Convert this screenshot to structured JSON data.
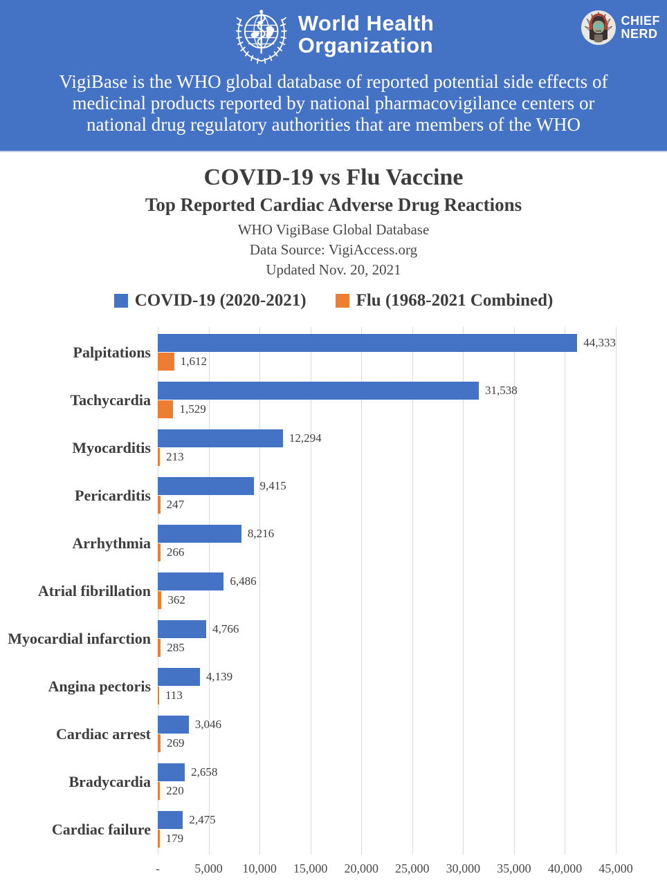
{
  "header": {
    "who_name_line1": "World Health",
    "who_name_line2": "Organization",
    "badge_line1": "CHIEF",
    "badge_line2": "NERD",
    "banner_lines": [
      "VigiBase is the WHO global database of reported potential side effects of",
      "medicinal products reported by national pharmacovigilance centers or",
      "national drug regulatory authorities that are members of the WHO"
    ],
    "banner_color": "#4472C4"
  },
  "legend": [
    {
      "label": "COVID-19 (2020-2021)",
      "color": "#4472C4"
    },
    {
      "label": "Flu (1968-2021 Combined)",
      "color": "#ED7D31"
    }
  ],
  "chart_data": {
    "type": "bar",
    "orientation": "horizontal",
    "title": "COVID-19 vs Flu Vaccine",
    "subtitle": "Top Reported Cardiac Adverse Drug Reactions",
    "source_lines": [
      "WHO VigiBase Global Database",
      "Data Source: VigiAccess.org",
      "Updated Nov. 20, 2021"
    ],
    "categories": [
      "Palpitations",
      "Tachycardia",
      "Myocarditis",
      "Pericarditis",
      "Arrhythmia",
      "Atrial fibrillation",
      "Myocardial infarction",
      "Angina pectoris",
      "Cardiac arrest",
      "Bradycardia",
      "Cardiac failure"
    ],
    "series": [
      {
        "name": "COVID-19 (2020-2021)",
        "color": "#4472C4",
        "values": [
          44333,
          31538,
          12294,
          9415,
          8216,
          6486,
          4766,
          4139,
          3046,
          2658,
          2475
        ]
      },
      {
        "name": "Flu (1968-2021 Combined)",
        "color": "#ED7D31",
        "values": [
          1612,
          1529,
          213,
          247,
          266,
          362,
          285,
          113,
          269,
          220,
          179
        ]
      }
    ],
    "xlim": [
      0,
      45000
    ],
    "xticks": [
      "-",
      "5,000",
      "10,000",
      "15,000",
      "20,000",
      "25,000",
      "30,000",
      "35,000",
      "40,000",
      "45,000"
    ],
    "gridline_interval": 5000,
    "grid": true,
    "legend_position": "top",
    "text_color": "#3d3d3d",
    "gridline_color": "#d9d9d9"
  }
}
